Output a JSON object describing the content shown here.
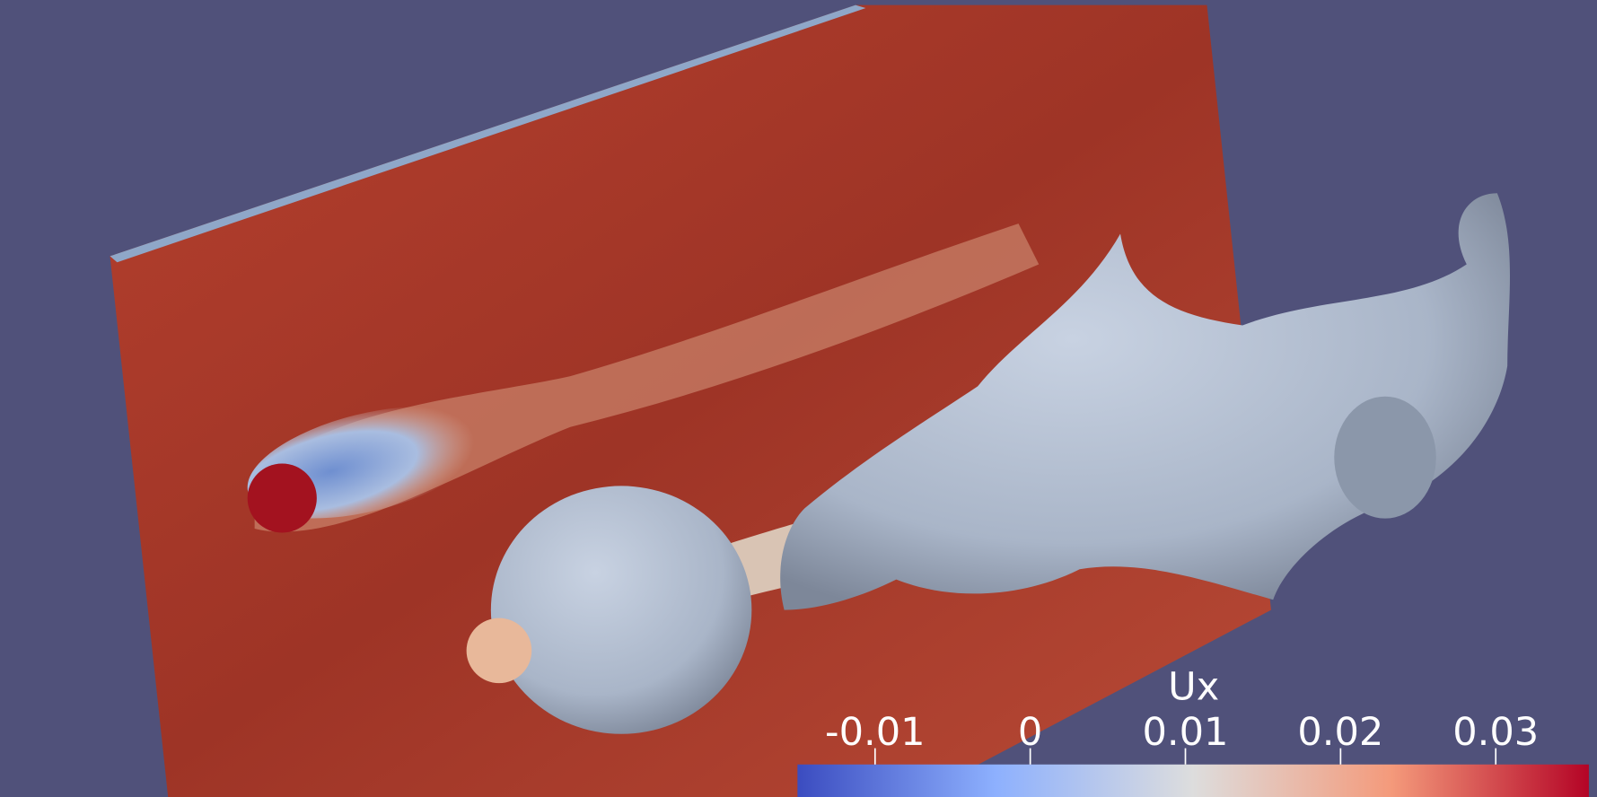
{
  "colorbar": {
    "title": "Ux",
    "range": [
      -0.015,
      0.036
    ],
    "ticks": [
      -0.01,
      0,
      0.01,
      0.02,
      0.03
    ]
  }
}
